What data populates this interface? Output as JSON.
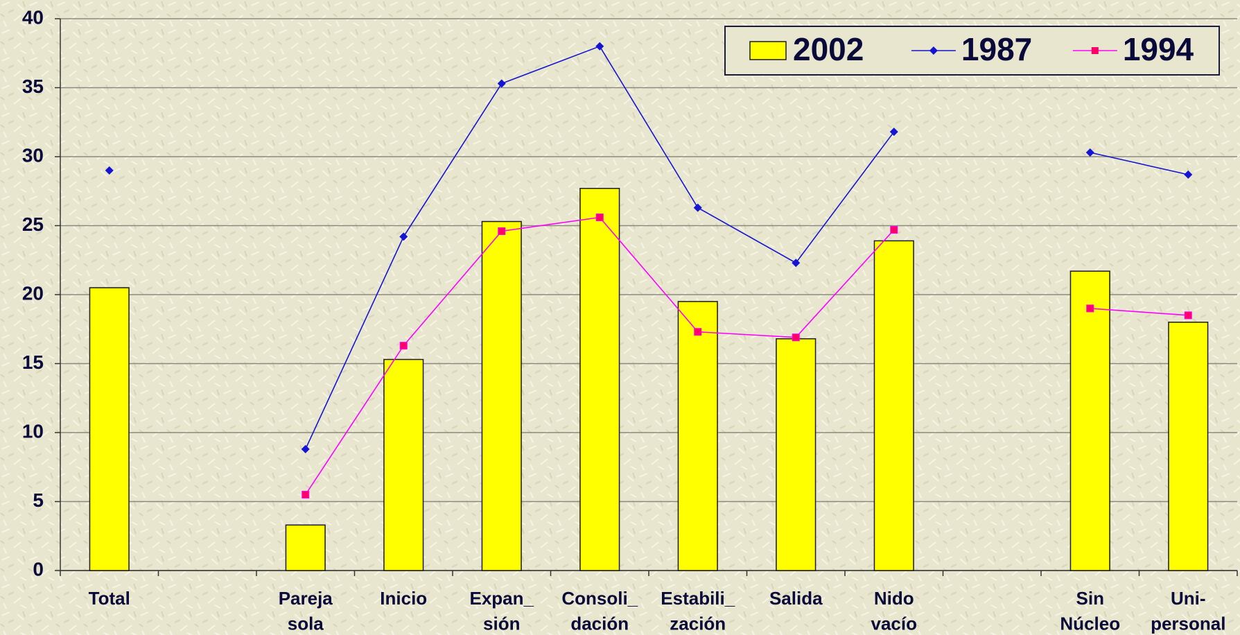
{
  "chart_data": {
    "type": "bar",
    "categories": [
      "Total",
      null,
      "Pareja\nsola",
      "Inicio",
      "Expan_\nsión",
      "Consoli_\ndación",
      "Estabili_\nzación",
      "Salida",
      "Nido\nvacío",
      null,
      "Sin\nNúcleo",
      "Uni-\npersonal"
    ],
    "series": [
      {
        "name": "2002",
        "type": "bar",
        "color": "#ffff00",
        "values": [
          20.5,
          null,
          3.3,
          15.3,
          25.3,
          27.7,
          19.5,
          16.8,
          23.9,
          null,
          21.7,
          18.0
        ]
      },
      {
        "name": "1987",
        "type": "line",
        "color": "#1414d2",
        "values": [
          29.0,
          null,
          8.8,
          24.2,
          35.3,
          38.0,
          26.3,
          22.3,
          31.8,
          null,
          30.3,
          28.7
        ]
      },
      {
        "name": "1994",
        "type": "line",
        "color": "#ff00ff",
        "marker_color": "#ff0066",
        "values": [
          null,
          null,
          5.5,
          16.3,
          24.6,
          25.6,
          17.3,
          16.9,
          24.7,
          null,
          19.0,
          18.5
        ]
      }
    ],
    "ylim": [
      0,
      40
    ],
    "yticks": [
      0,
      5,
      10,
      15,
      20,
      25,
      30,
      35,
      40
    ],
    "grid": true,
    "legend": "top-right"
  }
}
